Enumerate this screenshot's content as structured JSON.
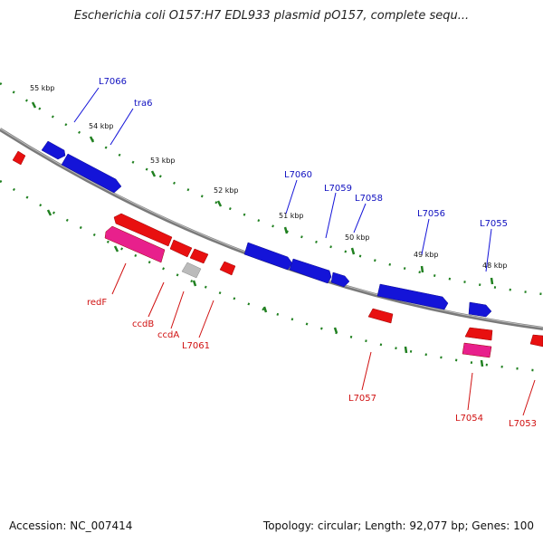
{
  "title": "Escherichia coli O157:H7 EDL933 plasmid pO157, complete sequ...",
  "footer": {
    "accession": "Accession: NC_007414",
    "info": "Topology: circular; Length: 92,077 bp; Genes: 100"
  },
  "colors": {
    "forward": "#1414d8",
    "reverse": "#e81010",
    "pseudo": "#e8208c",
    "other": "#bbbbbb",
    "backbone": "#888888",
    "tick": "#208020"
  },
  "ticks": [
    "55 kbp",
    "54 kbp",
    "53 kbp",
    "52 kbp",
    "51 kbp",
    "50 kbp",
    "49 kbp",
    "48 kbp"
  ],
  "genes_forward": [
    "L7066",
    "tra6",
    "L7060",
    "L7059",
    "L7058",
    "L7056",
    "L7055"
  ],
  "genes_reverse": [
    "redF",
    "ccdB",
    "ccdA",
    "L7061",
    "L7057",
    "L7054",
    "L7053"
  ]
}
